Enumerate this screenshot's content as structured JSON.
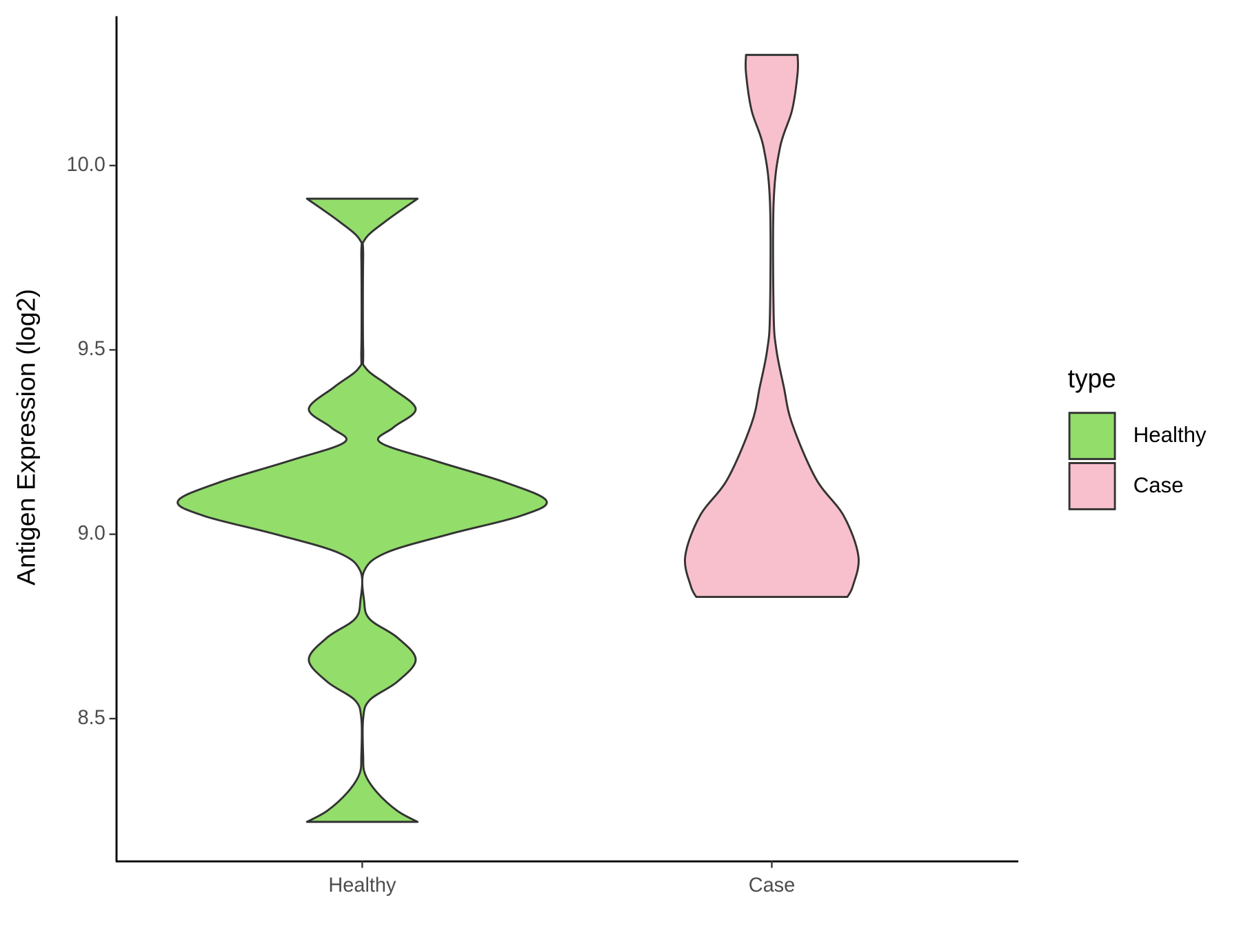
{
  "chart_data": {
    "type": "violin",
    "y_label": "Antigen Expression (log2)",
    "categories": [
      "Healthy",
      "Case"
    ],
    "ylim": [
      8.115,
      10.405
    ],
    "yticks": [
      {
        "value": 8.5,
        "label": "8.5"
      },
      {
        "value": 9,
        "label": "9.0"
      },
      {
        "value": 9.5,
        "label": "9.5"
      },
      {
        "value": 10,
        "label": "10.0"
      }
    ],
    "legend_title": "type",
    "legend_position": "right",
    "series": [
      {
        "name": "Healthy",
        "color": "#93dd6b",
        "y": [
          8.22,
          8.25,
          8.3,
          8.35,
          8.4,
          8.5,
          8.55,
          8.6,
          8.66,
          8.72,
          8.77,
          8.82,
          8.9,
          8.95,
          9.0,
          9.05,
          9.09,
          9.14,
          9.2,
          9.25,
          9.29,
          9.34,
          9.4,
          9.45,
          9.5,
          9.75,
          9.8,
          9.85,
          9.91
        ],
        "widths": [
          0.3,
          0.19,
          0.08,
          0.015,
          0.005,
          0.005,
          0.04,
          0.19,
          0.29,
          0.19,
          0.04,
          0.01,
          0.01,
          0.13,
          0.47,
          0.86,
          1.0,
          0.78,
          0.39,
          0.095,
          0.17,
          0.29,
          0.15,
          0.02,
          0.005,
          0.005,
          0.015,
          0.13,
          0.3
        ]
      },
      {
        "name": "Case",
        "color": "#f8c0cc",
        "y": [
          8.83,
          8.86,
          8.94,
          9.05,
          9.15,
          9.3,
          9.4,
          9.5,
          9.6,
          9.9,
          10.05,
          10.15,
          10.25,
          10.3
        ],
        "widths": [
          0.41,
          0.44,
          0.47,
          0.39,
          0.24,
          0.11,
          0.065,
          0.025,
          0.01,
          0.01,
          0.045,
          0.11,
          0.14,
          0.14
        ]
      }
    ]
  }
}
